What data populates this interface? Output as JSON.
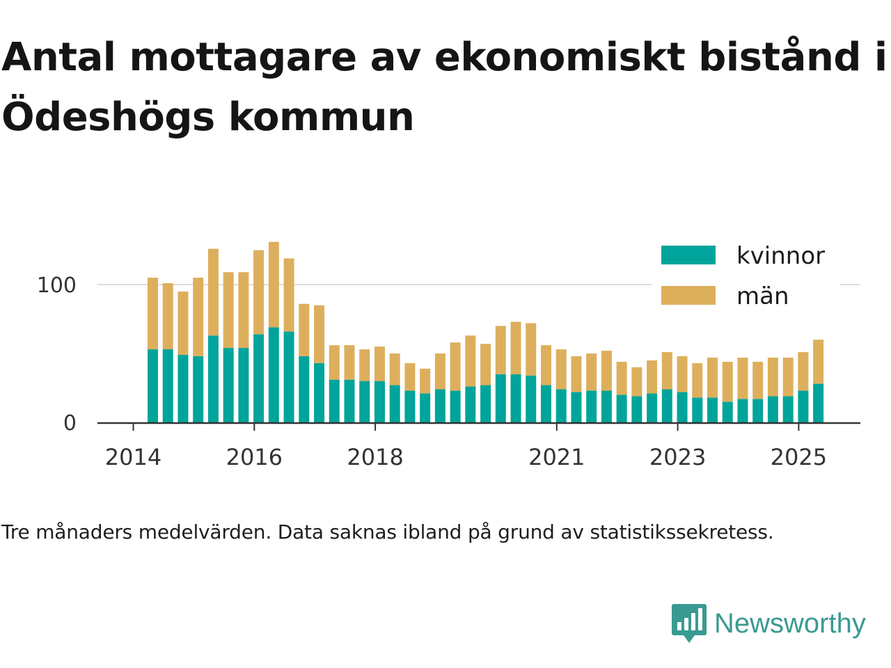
{
  "title": "Antal mottagare av ekonomiskt bistånd i Ödeshögs kommun",
  "caption": "Tre månaders medelvärden. Data saknas ibland på grund av statistikssekretess.",
  "brand": {
    "name": "Newsworthy",
    "icon": "newsworthy-logo-icon",
    "color": "#3a9a91"
  },
  "chart_data": {
    "type": "bar",
    "stacked": true,
    "x_tick_labels": [
      "2014",
      "2016",
      "2018",
      "2021",
      "2023",
      "2025"
    ],
    "y_ticks": [
      0,
      100
    ],
    "ylim": [
      0,
      135
    ],
    "grid": "horizontal",
    "legend_position": "top-right",
    "categories": [
      "2014 Q2",
      "2014 Q3",
      "2014 Q4",
      "2015 Q1",
      "2015 Q2",
      "2015 Q3",
      "2015 Q4",
      "2016 Q1",
      "2016 Q2",
      "2016 Q3",
      "2016 Q4",
      "2017 Q1",
      "2017 Q2",
      "2017 Q3",
      "2017 Q4",
      "2018 Q1",
      "2018 Q2",
      "2018 Q3",
      "2018 Q4",
      "2019 Q1",
      "2019 Q2",
      "2019 Q3",
      "2019 Q4",
      "2020 Q1",
      "2020 Q2",
      "2020 Q3",
      "2020 Q4",
      "2021 Q1",
      "2021 Q2",
      "2021 Q3",
      "2021 Q4",
      "2022 Q1",
      "2022 Q2",
      "2022 Q3",
      "2022 Q4",
      "2023 Q1",
      "2023 Q2",
      "2023 Q3",
      "2023 Q4",
      "2024 Q1",
      "2024 Q2",
      "2024 Q3",
      "2024 Q4",
      "2025 Q1",
      "2025 Q2"
    ],
    "series": [
      {
        "name": "kvinnor",
        "color": "#00a49a",
        "values": [
          53,
          53,
          49,
          48,
          63,
          54,
          54,
          64,
          69,
          66,
          48,
          43,
          31,
          31,
          30,
          30,
          27,
          23,
          21,
          24,
          23,
          26,
          27,
          35,
          35,
          34,
          27,
          24,
          22,
          23,
          23,
          20,
          19,
          21,
          24,
          22,
          18,
          18,
          15,
          17,
          17,
          19,
          19,
          23,
          28
        ]
      },
      {
        "name": "män",
        "color": "#ddaf5d",
        "values": [
          52,
          48,
          46,
          57,
          63,
          55,
          55,
          61,
          62,
          53,
          38,
          42,
          25,
          25,
          23,
          25,
          23,
          20,
          18,
          26,
          35,
          37,
          30,
          35,
          38,
          38,
          29,
          29,
          26,
          27,
          29,
          24,
          21,
          24,
          27,
          26,
          25,
          29,
          29,
          30,
          27,
          28,
          28,
          28,
          32
        ]
      }
    ]
  }
}
